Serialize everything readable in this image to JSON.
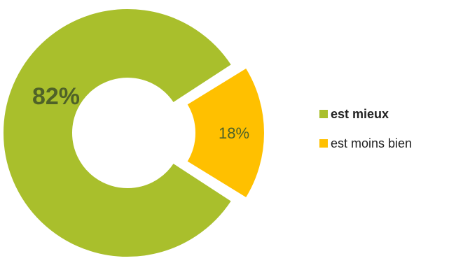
{
  "colors": {
    "green": "#a9bf2c",
    "yellow": "#ffc000",
    "label_dark_green": "#4f6228",
    "background": "#ffffff"
  },
  "chart_data": {
    "type": "pie",
    "donut": true,
    "title": "",
    "categories": [
      "est mieux",
      "est moins bien"
    ],
    "values": [
      82,
      18
    ],
    "labels": [
      "82%",
      "18%"
    ],
    "legend": {
      "position": "right",
      "items": [
        {
          "label": "est mieux",
          "bold": true
        },
        {
          "label": "est moins bien",
          "bold": false
        }
      ]
    }
  }
}
